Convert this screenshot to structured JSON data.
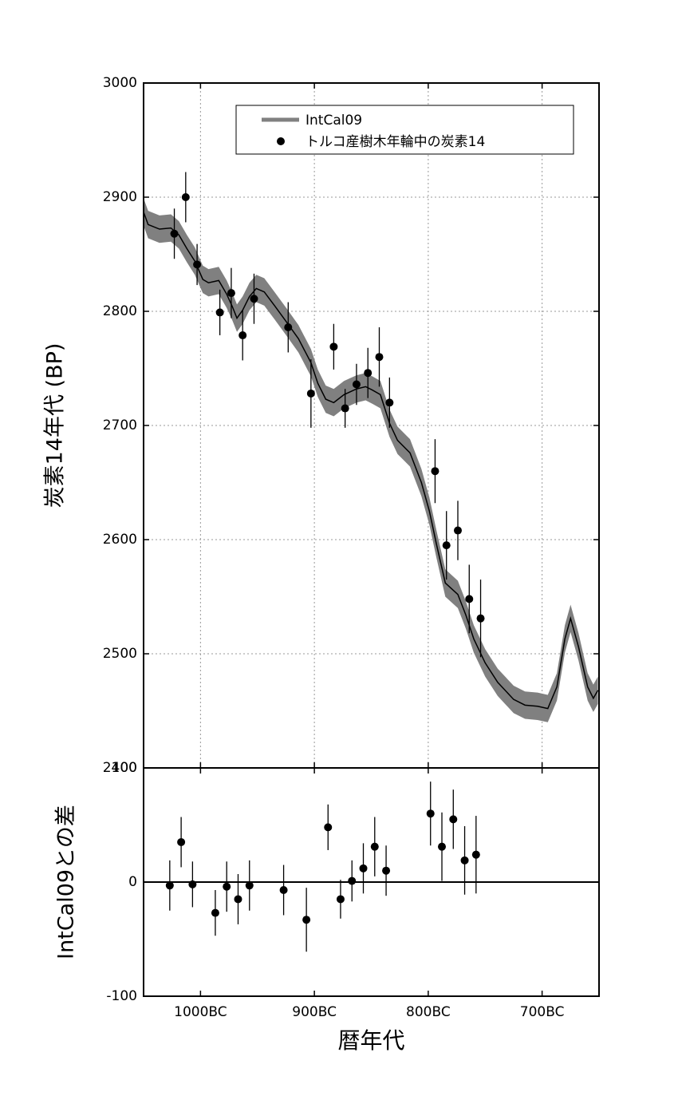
{
  "chart_data": [
    {
      "type": "line",
      "ylabel": "炭素14年代 (BP)",
      "xlim": [
        -1050,
        -650
      ],
      "xticks": [
        -1000,
        -900,
        -800,
        -700
      ],
      "ylim": [
        2400,
        3000
      ],
      "yticks": [
        2400,
        2500,
        2600,
        2700,
        2800,
        2900,
        3000
      ],
      "grid": true,
      "legend": "upper right",
      "series": [
        {
          "name": "IntCal09",
          "color": "#000000",
          "band_color": "#808080",
          "band_halfwidth": 12,
          "x": [
            -1050,
            -1046,
            -1036,
            -1026,
            -1019,
            -1012,
            -1005,
            -998,
            -993,
            -984,
            -977,
            -972,
            -968,
            -963,
            -957,
            -951,
            -944,
            -935,
            -924,
            -914,
            -903,
            -897,
            -890,
            -883,
            -874,
            -863,
            -855,
            -849,
            -842,
            -834,
            -827,
            -816,
            -806,
            -799,
            -793,
            -785,
            -774,
            -767,
            -760,
            -750,
            -739,
            -725,
            -715,
            -704,
            -695,
            -687,
            -680,
            -675,
            -668,
            -660,
            -655,
            -651
          ],
          "values": [
            2887,
            2876,
            2872,
            2873,
            2867,
            2855,
            2844,
            2828,
            2825,
            2827,
            2815,
            2804,
            2794,
            2801,
            2813,
            2820,
            2817,
            2805,
            2790,
            2776,
            2755,
            2737,
            2723,
            2720,
            2727,
            2732,
            2734,
            2731,
            2727,
            2702,
            2687,
            2676,
            2650,
            2625,
            2597,
            2562,
            2552,
            2534,
            2513,
            2492,
            2475,
            2460,
            2455,
            2454,
            2452,
            2471,
            2513,
            2531,
            2506,
            2471,
            2461,
            2468
          ]
        },
        {
          "name": "トルコ産樹木年輪中の炭素14",
          "type": "scatter",
          "color": "#000000",
          "x": [
            -1023,
            -1013,
            -1003,
            -983,
            -973,
            -963,
            -953,
            -923,
            -903,
            -883,
            -873,
            -863,
            -853,
            -843,
            -834,
            -794,
            -784,
            -774,
            -764,
            -754
          ],
          "values": [
            2868,
            2900,
            2841,
            2799,
            2816,
            2779,
            2811,
            2786,
            2728,
            2769,
            2715,
            2736,
            2746,
            2760,
            2720,
            2660,
            2595,
            2608,
            2548,
            2531
          ],
          "errors": [
            22,
            22,
            18,
            20,
            22,
            22,
            22,
            22,
            30,
            20,
            17,
            18,
            22,
            26,
            22,
            28,
            30,
            26,
            30,
            34
          ]
        }
      ]
    },
    {
      "type": "scatter",
      "xlabel": "暦年代",
      "ylabel": "IntCal09との差",
      "xlim": [
        -1050,
        -650
      ],
      "xticks": [
        {
          "value": -1000,
          "label": "1000BC"
        },
        {
          "value": -900,
          "label": "900BC"
        },
        {
          "value": -800,
          "label": "800BC"
        },
        {
          "value": -700,
          "label": "700BC"
        }
      ],
      "ylim": [
        -100,
        100
      ],
      "yticks": [
        -100,
        0,
        100
      ],
      "series": [
        {
          "color": "#000000",
          "x": [
            -1027,
            -1017,
            -1007,
            -987,
            -977,
            -967,
            -957,
            -927,
            -907,
            -888,
            -877,
            -867,
            -857,
            -847,
            -837,
            -798,
            -788,
            -778,
            -768,
            -758
          ],
          "values": [
            -3,
            35,
            -2,
            -27,
            -4,
            -15,
            -3,
            -7,
            -33,
            48,
            -15,
            1,
            12,
            31,
            10,
            60,
            31,
            55,
            19,
            24
          ],
          "errors": [
            22,
            22,
            20,
            20,
            22,
            22,
            22,
            22,
            28,
            20,
            17,
            18,
            22,
            26,
            22,
            28,
            30,
            26,
            30,
            34
          ]
        }
      ]
    }
  ]
}
